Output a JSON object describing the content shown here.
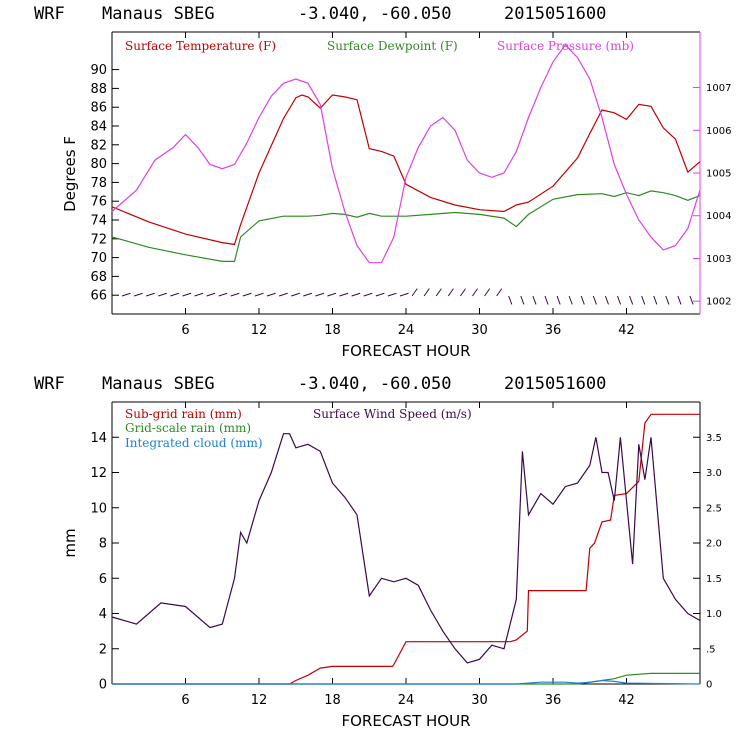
{
  "header_top": {
    "model": "WRF",
    "station": "Manaus SBEG",
    "coords": "-3.040, -60.050",
    "init": "2015051600"
  },
  "header_bottom": {
    "model": "WRF",
    "station": "Manaus SBEG",
    "coords": "-3.040, -60.050",
    "init": "2015051600"
  },
  "colors": {
    "temperature": "#c00000",
    "dewpoint": "#2e8b22",
    "pressure": "#e040e0",
    "wind": "#3a0a4a",
    "subgrid_rain": "#c00000",
    "grid_rain": "#2e8b22",
    "cloud": "#1e7fd0",
    "frame": "#000000"
  },
  "chart_data": [
    {
      "type": "line",
      "xlabel": "FORECAST HOUR",
      "ylabel": "Degrees F",
      "xlim": [
        0,
        48
      ],
      "xticks": [
        "6",
        "12",
        "18",
        "24",
        "30",
        "36",
        "42"
      ],
      "ylim": [
        64,
        94
      ],
      "yticks": [
        "66",
        "68",
        "70",
        "72",
        "74",
        "76",
        "78",
        "80",
        "82",
        "84",
        "86",
        "88",
        "90"
      ],
      "y2lim": [
        1001.7,
        1008.3
      ],
      "y2ticks": [
        "1002",
        "1003",
        "1004",
        "1005",
        "1006",
        "1007"
      ],
      "legend_position": "top",
      "grid": false,
      "series": [
        {
          "name": "Surface Temperature (F)",
          "axis": "left",
          "x": [
            0,
            3,
            6,
            9,
            10,
            10.5,
            12,
            14,
            15,
            15.5,
            16,
            17,
            18,
            19,
            20,
            21,
            22,
            23,
            24,
            26,
            28,
            30,
            32,
            33,
            34,
            36,
            38,
            39,
            40,
            41,
            42,
            43,
            44,
            45,
            46,
            47,
            48
          ],
          "y": [
            75.4,
            73.8,
            72.5,
            71.6,
            71.4,
            73.5,
            79,
            84.8,
            87,
            87.3,
            87.1,
            85.9,
            87.3,
            87.1,
            86.8,
            81.6,
            81.3,
            80.8,
            77.8,
            76.4,
            75.6,
            75.1,
            74.9,
            75.6,
            75.9,
            77.6,
            80.6,
            83.2,
            85.7,
            85.4,
            84.7,
            86.3,
            86.1,
            83.8,
            82.6,
            79.1,
            80.2
          ]
        },
        {
          "name": "Surface Dewpoint (F)",
          "axis": "left",
          "x": [
            0,
            3,
            6,
            9,
            10,
            10.5,
            12,
            14,
            15,
            16,
            17,
            18,
            19,
            20,
            21,
            22,
            24,
            26,
            28,
            30,
            32,
            33,
            34,
            36,
            38,
            40,
            41,
            42,
            43,
            44,
            45,
            46,
            47,
            48
          ],
          "y": [
            72.2,
            71.1,
            70.3,
            69.6,
            69.6,
            72.2,
            73.9,
            74.4,
            74.4,
            74.4,
            74.5,
            74.7,
            74.6,
            74.3,
            74.7,
            74.4,
            74.4,
            74.6,
            74.8,
            74.6,
            74.2,
            73.3,
            74.6,
            76.2,
            76.7,
            76.8,
            76.5,
            76.9,
            76.6,
            77.1,
            76.9,
            76.6,
            76.1,
            76.6
          ]
        },
        {
          "name": "Surface Pressure (mb)",
          "axis": "right",
          "x": [
            0,
            2,
            3.5,
            5,
            6,
            7,
            8,
            9,
            10,
            11,
            12,
            13,
            14,
            15,
            16,
            17,
            18,
            19,
            20,
            21,
            22,
            23,
            24,
            25,
            26,
            27,
            28,
            29,
            30,
            31,
            32,
            33,
            34,
            35,
            36,
            37,
            38,
            39,
            40,
            41,
            42,
            43,
            44,
            45,
            46,
            47,
            48
          ],
          "y": [
            1004.1,
            1004.6,
            1005.3,
            1005.6,
            1005.9,
            1005.6,
            1005.2,
            1005.1,
            1005.2,
            1005.7,
            1006.3,
            1006.8,
            1007.1,
            1007.2,
            1007.1,
            1006.6,
            1005.1,
            1004.1,
            1003.3,
            1002.9,
            1002.9,
            1003.5,
            1004.9,
            1005.6,
            1006.1,
            1006.3,
            1006.0,
            1005.3,
            1005.0,
            1004.9,
            1005.0,
            1005.5,
            1006.3,
            1007.0,
            1007.6,
            1008.0,
            1007.7,
            1007.2,
            1006.3,
            1005.2,
            1004.5,
            1003.9,
            1003.5,
            1003.2,
            1003.3,
            1003.7,
            1004.6
          ]
        }
      ]
    },
    {
      "type": "line",
      "xlabel": "FORECAST HOUR",
      "ylabel": "mm",
      "xlim": [
        0,
        48
      ],
      "xticks": [
        "6",
        "12",
        "18",
        "24",
        "30",
        "36",
        "42"
      ],
      "ylim": [
        0,
        16
      ],
      "yticks": [
        "0",
        "2",
        "4",
        "6",
        "8",
        "10",
        "12",
        "14"
      ],
      "y2lim": [
        0,
        4
      ],
      "y2ticks": [
        "0",
        ".5",
        "1.0",
        "1.5",
        "2.0",
        "2.5",
        "3.0",
        "3.5"
      ],
      "legend_position": "top",
      "grid": false,
      "series": [
        {
          "name": "Sub-grid rain (mm)",
          "axis": "left",
          "x": [
            0,
            14.5,
            15,
            16,
            17,
            18,
            22.9,
            23,
            24,
            32.5,
            33,
            33.9,
            34,
            38.7,
            39,
            39.4,
            40,
            40.7,
            41,
            42,
            43,
            43.5,
            44,
            48
          ],
          "y": [
            0,
            0,
            0.2,
            0.5,
            0.9,
            1.0,
            1.0,
            1.1,
            2.4,
            2.4,
            2.5,
            3.0,
            5.3,
            5.3,
            7.7,
            8.0,
            9.2,
            9.3,
            10.7,
            10.8,
            11.5,
            14.8,
            15.3,
            15.3
          ]
        },
        {
          "name": "Grid-scale rain (mm)",
          "axis": "left",
          "x": [
            0,
            38,
            40,
            41,
            42,
            44,
            48
          ],
          "y": [
            0,
            0,
            0.2,
            0.3,
            0.5,
            0.6,
            0.6
          ]
        },
        {
          "name": "Integrated cloud (mm)",
          "axis": "left",
          "x": [
            0,
            33,
            35,
            37,
            38,
            39,
            40,
            41,
            42,
            48
          ],
          "y": [
            0,
            0,
            0.1,
            0.1,
            0.05,
            0.1,
            0.2,
            0.15,
            0.05,
            0
          ]
        },
        {
          "name": "Surface Wind Speed (m/s)",
          "axis": "right",
          "x": [
            0,
            2,
            4,
            6,
            8,
            9,
            10,
            10.5,
            11,
            12,
            13,
            14,
            14.5,
            15,
            16,
            17,
            18,
            19,
            20,
            21,
            22,
            23,
            24,
            25,
            26,
            27,
            28,
            29,
            30,
            31,
            32,
            33,
            33.5,
            34,
            35,
            36,
            37,
            38,
            39,
            39.5,
            40,
            40.5,
            41,
            41.5,
            42,
            42.5,
            43,
            43.5,
            44,
            45,
            46,
            47,
            48
          ],
          "y": [
            0.95,
            0.85,
            1.15,
            1.1,
            0.8,
            0.85,
            1.5,
            2.15,
            2.0,
            2.6,
            3.0,
            3.55,
            3.55,
            3.35,
            3.4,
            3.3,
            2.85,
            2.65,
            2.4,
            1.25,
            1.5,
            1.45,
            1.5,
            1.4,
            1.05,
            0.75,
            0.5,
            0.3,
            0.35,
            0.55,
            0.5,
            1.2,
            3.3,
            2.4,
            2.7,
            2.55,
            2.8,
            2.85,
            3.1,
            3.5,
            3.0,
            3.0,
            2.6,
            3.5,
            2.6,
            1.7,
            3.4,
            2.9,
            3.5,
            1.5,
            1.2,
            1.0,
            0.9
          ]
        }
      ]
    }
  ]
}
